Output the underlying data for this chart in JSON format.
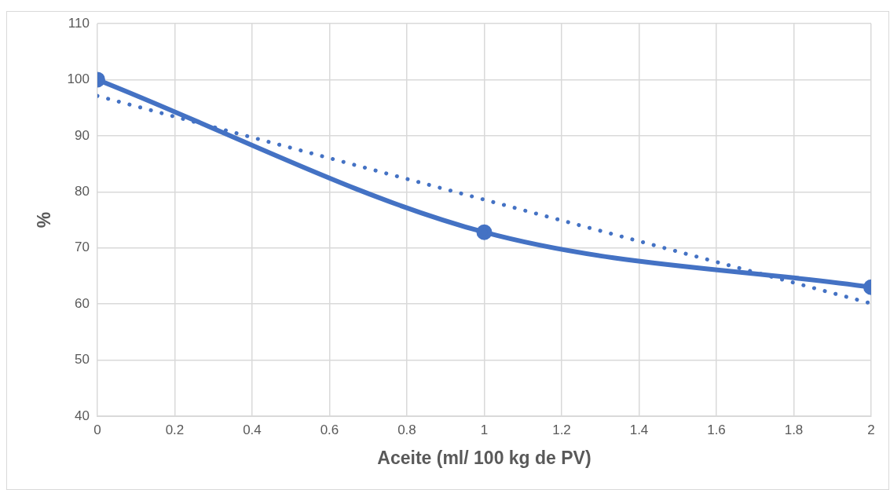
{
  "chart_data": {
    "type": "line",
    "xlabel": "Aceite (ml/ 100 kg de PV)",
    "ylabel": "%",
    "xlim": [
      0,
      2
    ],
    "xticks": [
      0,
      0.2,
      0.4,
      0.6,
      0.8,
      1,
      1.2,
      1.4,
      1.6,
      1.8,
      2
    ],
    "ylim": [
      40,
      110
    ],
    "yticks": [
      40,
      50,
      60,
      70,
      80,
      90,
      100,
      110
    ],
    "grid": true,
    "legend": false,
    "series": [
      {
        "color": "#4472c4",
        "x": [
          0,
          1,
          2
        ],
        "values": [
          100,
          72.8,
          63
        ],
        "marker": "circle",
        "line_style": "solid"
      },
      {
        "color": "#4472c4",
        "x": [
          0,
          2
        ],
        "values": [
          97.1,
          60.1
        ],
        "marker": "none",
        "line_style": "dotted"
      }
    ]
  }
}
